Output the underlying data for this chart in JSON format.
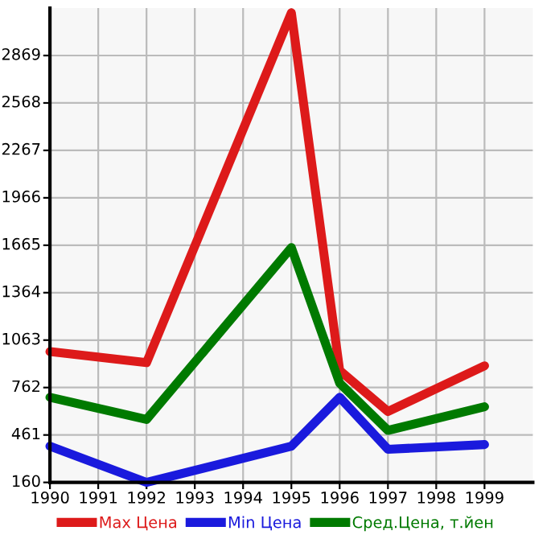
{
  "chart_data": {
    "type": "line",
    "x": [
      1990,
      1992,
      1995,
      1996,
      1997,
      1999
    ],
    "series": [
      {
        "name": "Max Цена",
        "color": "#dd1a1a",
        "values": [
          990,
          920,
          3140,
          870,
          610,
          900
        ]
      },
      {
        "name": "Min Цена",
        "color": "#1a1add",
        "values": [
          390,
          160,
          390,
          700,
          370,
          400
        ]
      },
      {
        "name": "Сред.Цена, т.йен",
        "color": "#007a00",
        "values": [
          700,
          560,
          1650,
          790,
          490,
          640
        ]
      }
    ],
    "xlim": [
      1990,
      2000
    ],
    "xticks": [
      1990,
      1991,
      1992,
      1993,
      1994,
      1995,
      1996,
      1997,
      1998,
      1999
    ],
    "ylim": [
      160,
      3170
    ],
    "yticks": [
      160,
      461,
      762,
      1063,
      1364,
      1665,
      1966,
      2267,
      2568,
      2869
    ],
    "grid": true,
    "legend": "bottom",
    "marker": "none",
    "line_style": "solid"
  }
}
